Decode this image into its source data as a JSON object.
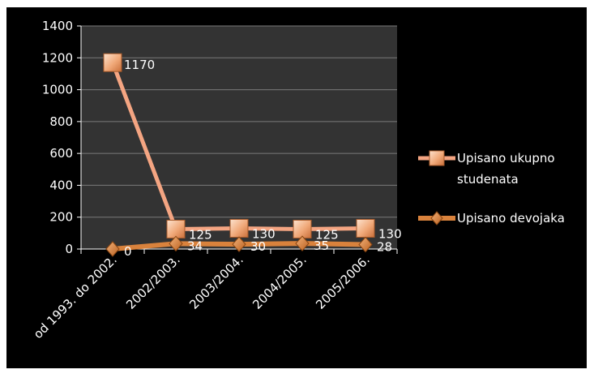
{
  "chart_data": {
    "type": "line",
    "title": "",
    "xlabel": "",
    "ylabel": "",
    "categories": [
      "od 1993. do 2002.",
      "2002/2003.",
      "2003/2004.",
      "2004/2005.",
      "2005/2006."
    ],
    "ylim": [
      0,
      1400
    ],
    "yticks": [
      "0",
      "200",
      "400",
      "600",
      "800",
      "1000",
      "1200",
      "1400"
    ],
    "grid": true,
    "legend_position": "right",
    "series": [
      {
        "name_lines": [
          "Upisano ukupno",
          "studenata"
        ],
        "values": [
          1170,
          125,
          130,
          125,
          130
        ],
        "labels": [
          "1170",
          "125",
          "130",
          "125",
          "130"
        ],
        "marker": "square",
        "color": "#f4a582",
        "marker_color": "#e8935f"
      },
      {
        "name_lines": [
          "Upisano devojaka"
        ],
        "values": [
          0,
          34,
          30,
          35,
          28
        ],
        "labels": [
          "0",
          "34",
          "30",
          "35",
          "28"
        ],
        "marker": "diamond",
        "color": "#d9823c",
        "marker_color": "#d67a30"
      }
    ],
    "colors": {
      "background": "#000000",
      "plot_area": "#333333",
      "gridline": "#7a7a7a",
      "axis": "#ffffff",
      "text": "#ffffff"
    }
  }
}
